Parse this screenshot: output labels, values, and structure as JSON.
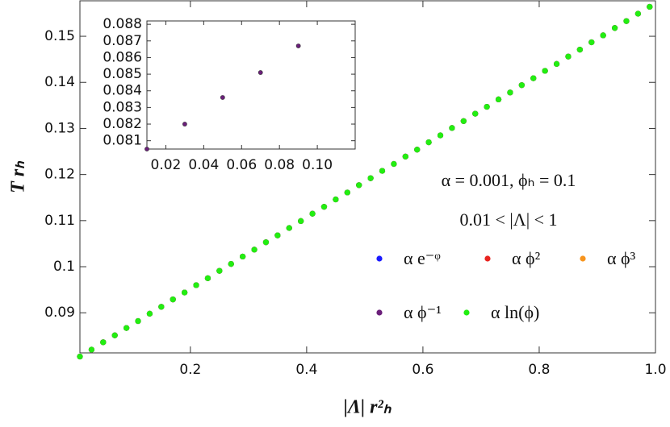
{
  "chart_data": [
    {
      "type": "scatter",
      "x_label": "|Λ| r²ₕ",
      "y_label": "T rₕ",
      "annotations": [
        "α = 0.001,  ϕₕ = 0.1",
        "0.01 < |Λ| < 1"
      ],
      "x": [
        0.01,
        0.03,
        0.05,
        0.07,
        0.09,
        0.11,
        0.13,
        0.15,
        0.17,
        0.19,
        0.21,
        0.23,
        0.25,
        0.27,
        0.29,
        0.31,
        0.33,
        0.35,
        0.37,
        0.39,
        0.41,
        0.43,
        0.45,
        0.47,
        0.49,
        0.51,
        0.53,
        0.55,
        0.57,
        0.59,
        0.61,
        0.63,
        0.65,
        0.67,
        0.69,
        0.71,
        0.73,
        0.75,
        0.77,
        0.79,
        0.81,
        0.83,
        0.85,
        0.87,
        0.89,
        0.91,
        0.93,
        0.95,
        0.97,
        0.99
      ],
      "series": [
        {
          "name": "α e⁻ᵠ",
          "color": "#1a1aff",
          "values": [
            0.0805,
            0.082,
            0.0836,
            0.0851,
            0.0867,
            0.0882,
            0.0898,
            0.0913,
            0.0929,
            0.0944,
            0.096,
            0.0975,
            0.0991,
            0.1006,
            0.1022,
            0.1037,
            0.1053,
            0.1068,
            0.1084,
            0.1099,
            0.1115,
            0.113,
            0.1146,
            0.1161,
            0.1177,
            0.1192,
            0.1208,
            0.1223,
            0.1239,
            0.1254,
            0.127,
            0.1285,
            0.1301,
            0.1316,
            0.1332,
            0.1347,
            0.1363,
            0.1378,
            0.1394,
            0.1409,
            0.1425,
            0.144,
            0.1456,
            0.1471,
            0.1487,
            0.1502,
            0.1518,
            0.1533,
            0.1549,
            0.1564
          ]
        },
        {
          "name": "α ϕ²",
          "color": "#e8231f",
          "values": [
            0.0805,
            0.082,
            0.0836,
            0.0851,
            0.0867,
            0.0882,
            0.0898,
            0.0913,
            0.0929,
            0.0944,
            0.096,
            0.0975,
            0.0991,
            0.1006,
            0.1022,
            0.1037,
            0.1053,
            0.1068,
            0.1084,
            0.1099,
            0.1115,
            0.113,
            0.1146,
            0.1161,
            0.1177,
            0.1192,
            0.1208,
            0.1223,
            0.1239,
            0.1254,
            0.127,
            0.1285,
            0.1301,
            0.1316,
            0.1332,
            0.1347,
            0.1363,
            0.1378,
            0.1394,
            0.1409,
            0.1425,
            0.144,
            0.1456,
            0.1471,
            0.1487,
            0.1502,
            0.1518,
            0.1533,
            0.1549,
            0.1564
          ]
        },
        {
          "name": "α ϕ³",
          "color": "#f7941d",
          "values": [
            0.0805,
            0.082,
            0.0836,
            0.0851,
            0.0867,
            0.0882,
            0.0898,
            0.0913,
            0.0929,
            0.0944,
            0.096,
            0.0975,
            0.0991,
            0.1006,
            0.1022,
            0.1037,
            0.1053,
            0.1068,
            0.1084,
            0.1099,
            0.1115,
            0.113,
            0.1146,
            0.1161,
            0.1177,
            0.1192,
            0.1208,
            0.1223,
            0.1239,
            0.1254,
            0.127,
            0.1285,
            0.1301,
            0.1316,
            0.1332,
            0.1347,
            0.1363,
            0.1378,
            0.1394,
            0.1409,
            0.1425,
            0.144,
            0.1456,
            0.1471,
            0.1487,
            0.1502,
            0.1518,
            0.1533,
            0.1549,
            0.1564
          ]
        },
        {
          "name": "α ϕ⁻¹",
          "color": "#6b1f7a",
          "values": [
            0.0805,
            0.082,
            0.0836,
            0.0851,
            0.0867,
            0.0882,
            0.0898,
            0.0913,
            0.0929,
            0.0944,
            0.096,
            0.0975,
            0.0991,
            0.1006,
            0.1022,
            0.1037,
            0.1053,
            0.1068,
            0.1084,
            0.1099,
            0.1115,
            0.113,
            0.1146,
            0.1161,
            0.1177,
            0.1192,
            0.1208,
            0.1223,
            0.1239,
            0.1254,
            0.127,
            0.1285,
            0.1301,
            0.1316,
            0.1332,
            0.1347,
            0.1363,
            0.1378,
            0.1394,
            0.1409,
            0.1425,
            0.144,
            0.1456,
            0.1471,
            0.1487,
            0.1502,
            0.1518,
            0.1533,
            0.1549,
            0.1564
          ]
        },
        {
          "name": "α ln(ϕ)",
          "color": "#22ee11",
          "values": [
            0.0805,
            0.082,
            0.0836,
            0.0851,
            0.0867,
            0.0882,
            0.0898,
            0.0913,
            0.0929,
            0.0944,
            0.096,
            0.0975,
            0.0991,
            0.1006,
            0.1022,
            0.1037,
            0.1053,
            0.1068,
            0.1084,
            0.1099,
            0.1115,
            0.113,
            0.1146,
            0.1161,
            0.1177,
            0.1192,
            0.1208,
            0.1223,
            0.1239,
            0.1254,
            0.127,
            0.1285,
            0.1301,
            0.1316,
            0.1332,
            0.1347,
            0.1363,
            0.1378,
            0.1394,
            0.1409,
            0.1425,
            0.144,
            0.1456,
            0.1471,
            0.1487,
            0.1502,
            0.1518,
            0.1533,
            0.1549,
            0.1564
          ]
        }
      ],
      "xlim": [
        0.01,
        1.0
      ],
      "ylim": [
        0.0813,
        0.1577
      ],
      "xticks": [
        0.2,
        0.4,
        0.6,
        0.8,
        {
          "value": 1.0,
          "label": "1.0"
        }
      ],
      "yticks": [
        0.09,
        0.1,
        0.11,
        0.12,
        0.13,
        0.14,
        0.15
      ],
      "legend": "lower right"
    },
    {
      "type": "scatter",
      "x": [
        0.01,
        0.03,
        0.05,
        0.07,
        0.09
      ],
      "values": [
        0.0805,
        0.082,
        0.0836,
        0.0851,
        0.0867
      ],
      "color": "#6b1f7a",
      "xlim": [
        0.01,
        0.12
      ],
      "ylim": [
        0.0805,
        0.0882
      ],
      "xticks": [
        0.02,
        0.04,
        0.06,
        0.08,
        {
          "value": 0.1,
          "label": "0.10"
        }
      ],
      "yticks": [
        0.081,
        0.082,
        0.083,
        0.084,
        0.085,
        0.086,
        0.087,
        0.088
      ]
    }
  ]
}
